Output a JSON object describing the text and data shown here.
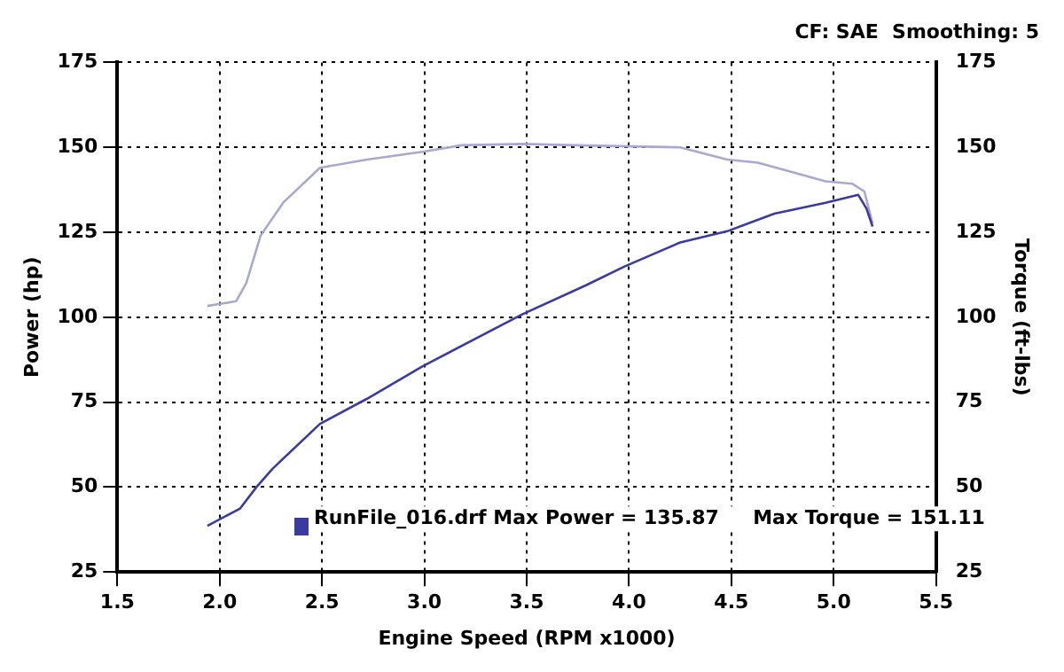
{
  "chart_data": {
    "type": "line",
    "subtitle": "CF: SAE  Smoothing: 5",
    "xlabel": "Engine Speed (RPM x1000)",
    "ylabel": "Power (hp)",
    "y2label": "Torque (ft-lbs)",
    "annotations": [
      "RunFile_016.drf Max Power = 135.87     Max Torque = 151.11"
    ],
    "xlim": [
      1.5,
      5.5
    ],
    "xticks": [
      {
        "value": 1.5,
        "label": "1.5"
      },
      {
        "value": 2,
        "label": "2.0"
      },
      {
        "value": 2.5,
        "label": "2.5"
      },
      {
        "value": 3,
        "label": "3.0"
      },
      {
        "value": 3.5,
        "label": "3.5"
      },
      {
        "value": 4,
        "label": "4.0"
      },
      {
        "value": 4.5,
        "label": "4.5"
      },
      {
        "value": 5,
        "label": "5.0"
      },
      {
        "value": 5.5,
        "label": "5.5"
      }
    ],
    "ylim": [
      25,
      175
    ],
    "yticks": [
      25,
      50,
      75,
      100,
      125,
      150,
      175
    ],
    "y2lim": [
      25,
      175
    ],
    "y2ticks": [
      25,
      50,
      75,
      100,
      125,
      150,
      175
    ],
    "grid": true,
    "legend": false,
    "marker": "none",
    "line_style": "solid",
    "series": [
      {
        "color": "#3a3aa0",
        "x": [
          1.94,
          2.1,
          2.18,
          2.26,
          2.49,
          2.72,
          2.99,
          3.48,
          3.79,
          3.98,
          4.25,
          4.48,
          4.71,
          4.96,
          5.12,
          5.16,
          5.19
        ],
        "values": [
          38.6,
          43.7,
          50,
          55.5,
          68.6,
          76,
          85.5,
          100.9,
          109.4,
          115,
          122,
          125.3,
          130.5,
          133.7,
          136,
          132,
          126.7
        ]
      },
      {
        "color": "#a8a8d0",
        "axis": "y2",
        "x": [
          1.94,
          2.08,
          2.13,
          2.2,
          2.31,
          2.49,
          2.72,
          2.99,
          3.18,
          3.48,
          3.74,
          4.25,
          4.48,
          4.63,
          4.96,
          5.09,
          5.15,
          5.19
        ],
        "values": [
          103.3,
          104.7,
          110,
          124,
          133.7,
          144,
          146.4,
          148.7,
          150.6,
          151,
          150.6,
          150,
          146.4,
          145.5,
          140,
          139.3,
          137,
          127.6
        ]
      }
    ]
  }
}
